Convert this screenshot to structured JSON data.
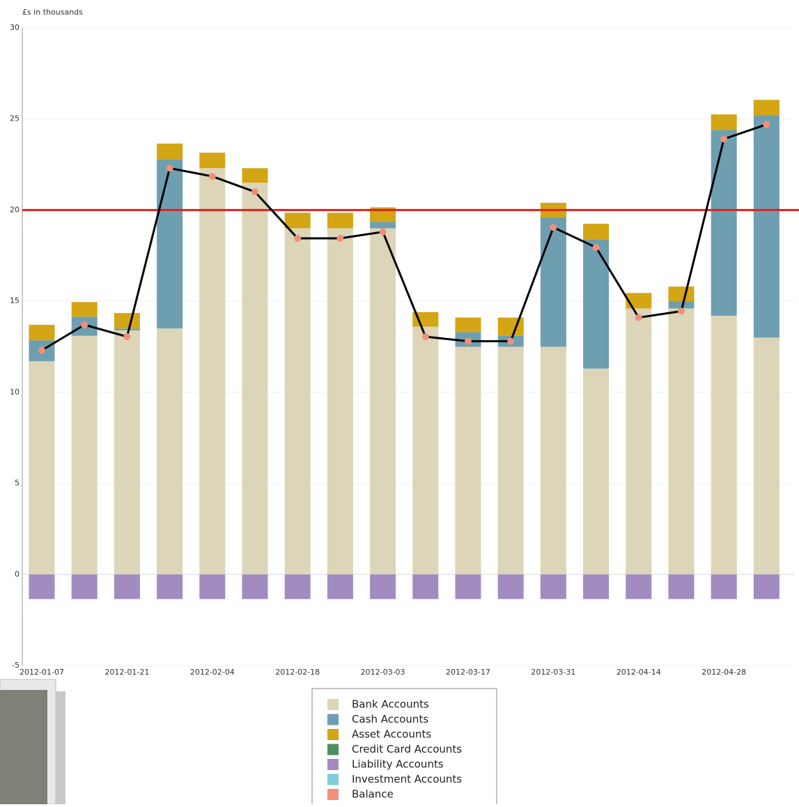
{
  "chart_data": {
    "type": "bar",
    "stacked": true,
    "y_label": "£s in thousands",
    "ylim": [
      -5,
      30
    ],
    "yticks": [
      -5,
      0,
      5,
      10,
      15,
      20,
      25,
      30
    ],
    "grid": true,
    "reference_line": {
      "value": 20,
      "color": "#e0201c"
    },
    "categories": [
      "2012-01-07",
      null,
      "2012-01-21",
      null,
      "2012-02-04",
      null,
      "2012-02-18",
      null,
      "2012-03-03",
      null,
      "2012-03-17",
      null,
      "2012-03-31",
      null,
      "2012-04-14",
      null,
      "2012-04-28",
      null
    ],
    "series": [
      {
        "name": "Bank Accounts",
        "color": "#ddd5b8",
        "values": [
          11.7,
          13.1,
          13.4,
          13.5,
          22.3,
          21.5,
          19.0,
          19.0,
          19.0,
          13.6,
          12.5,
          12.5,
          12.5,
          11.3,
          14.6,
          14.6,
          14.2,
          13.0
        ]
      },
      {
        "name": "Cash Accounts",
        "color": "#6e9fb1",
        "values": [
          1.15,
          1.05,
          0.1,
          9.3,
          0,
          0,
          0,
          0,
          0.35,
          0,
          0.8,
          0.6,
          7.1,
          7.1,
          0,
          0.4,
          10.2,
          12.2
        ]
      },
      {
        "name": "Asset Accounts",
        "color": "#d4a514",
        "values": [
          0.85,
          0.8,
          0.85,
          0.85,
          0.85,
          0.8,
          0.85,
          0.85,
          0.8,
          0.8,
          0.8,
          1.0,
          0.8,
          0.85,
          0.85,
          0.8,
          0.85,
          0.85
        ]
      },
      {
        "name": "Credit Card Accounts",
        "color": "#4f8f64",
        "values": [
          0,
          0,
          0,
          0,
          0,
          0,
          0,
          0,
          0,
          0,
          0,
          0,
          0,
          0,
          0,
          0,
          0,
          0
        ]
      },
      {
        "name": "Liability Accounts",
        "color": "#a18bc0",
        "values": [
          -1.35,
          -1.35,
          -1.35,
          -1.35,
          -1.35,
          -1.35,
          -1.35,
          -1.35,
          -1.35,
          -1.35,
          -1.35,
          -1.35,
          -1.35,
          -1.35,
          -1.35,
          -1.35,
          -1.35,
          -1.35
        ]
      },
      {
        "name": "Investment Accounts",
        "color": "#80ccd8",
        "values": [
          0,
          0,
          0,
          0,
          0,
          0,
          0,
          0,
          0,
          0,
          0,
          0,
          0,
          0,
          0,
          0,
          0,
          0
        ]
      },
      {
        "name": "Balance",
        "color": "#f0907a",
        "type": "line",
        "line_color": "#000000",
        "values": [
          12.3,
          13.7,
          13.05,
          22.3,
          21.85,
          21.0,
          18.45,
          18.45,
          18.8,
          13.05,
          12.8,
          12.8,
          19.05,
          17.95,
          14.1,
          14.45,
          23.9,
          24.7
        ]
      }
    ]
  }
}
